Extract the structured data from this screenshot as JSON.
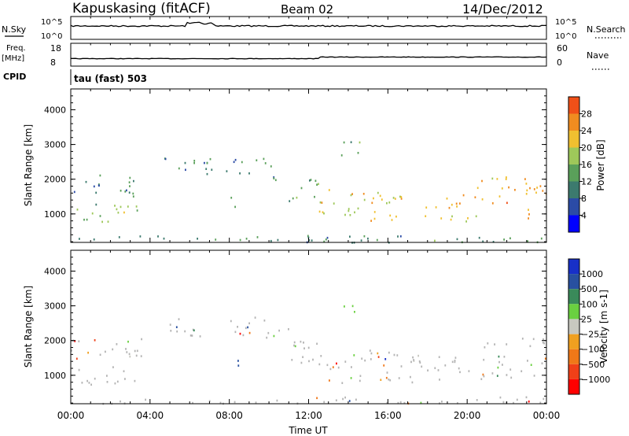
{
  "header": {
    "station": "Kapuskasing (fitACF)",
    "beam": "Beam 02",
    "date": "14/Dec/2012"
  },
  "top_panels": {
    "nsky_label": "N.Sky",
    "nsky_ticks": [
      "10^5",
      "10^0"
    ],
    "nsearch_label": "N.Search",
    "nsearch_ticks": [
      "10^5",
      "10^0"
    ],
    "freq_label_1": "Freq.",
    "freq_label_2": "[MHz]",
    "freq_ticks": [
      "18",
      "8"
    ],
    "nave_label": "Nave",
    "nave_ticks": [
      "60",
      "0"
    ],
    "cpid_label": "CPID",
    "cpid_text": "tau (fast) 503"
  },
  "colors": {
    "power": [
      "#0000ff",
      "#2b4ba6",
      "#3c7a6e",
      "#5aa05a",
      "#9ec85a",
      "#f0c030",
      "#f08c20",
      "#f05018",
      "#ff0000"
    ],
    "velocity": [
      "#1830c8",
      "#2850a0",
      "#3a8a5a",
      "#6ad040",
      "#c8c8c0",
      "#f0a020",
      "#f07818",
      "#f04018",
      "#ff0000"
    ],
    "ground_scatter": "#b4b4b4"
  },
  "chart_data": [
    {
      "type": "heatmap",
      "name": "power",
      "ylabel": "Slant Range [km]",
      "yticks": [
        "1000",
        "2000",
        "3000",
        "4000"
      ],
      "ylim": [
        180,
        4600
      ],
      "colorbar_label": "Power [dB]",
      "colorbar_ticks": [
        "4",
        "8",
        "12",
        "16",
        "20",
        "24",
        "28"
      ],
      "clim": [
        0,
        32
      ],
      "regions": [
        {
          "t0": 0.0,
          "t1": 3.6,
          "r0": 1500,
          "r1": 2200,
          "level": 8
        },
        {
          "t0": 0.2,
          "t1": 3.8,
          "r0": 750,
          "r1": 1300,
          "level": 14
        },
        {
          "t0": 4.6,
          "t1": 9.8,
          "r0": 2150,
          "r1": 2700,
          "level": 9
        },
        {
          "t0": 7.6,
          "t1": 8.6,
          "r0": 1200,
          "r1": 1500,
          "level": 14
        },
        {
          "t0": 9.6,
          "t1": 11.0,
          "r0": 2000,
          "r1": 2400,
          "level": 10
        },
        {
          "t0": 11.0,
          "t1": 12.5,
          "r0": 1300,
          "r1": 2100,
          "level": 12
        },
        {
          "t0": 12.5,
          "t1": 16.5,
          "r0": 800,
          "r1": 1800,
          "level": 19
        },
        {
          "t0": 16.5,
          "t1": 20.5,
          "r0": 800,
          "r1": 1600,
          "level": 20
        },
        {
          "t0": 20.5,
          "t1": 24.0,
          "r0": 900,
          "r1": 2100,
          "level": 22
        },
        {
          "t0": 13.6,
          "t1": 14.6,
          "r0": 2600,
          "r1": 3100,
          "level": 12
        },
        {
          "t0": 0.0,
          "t1": 24.0,
          "r0": 200,
          "r1": 400,
          "level": 10
        }
      ]
    },
    {
      "type": "heatmap",
      "name": "velocity",
      "ylabel": "Slant Range [km]",
      "yticks": [
        "1000",
        "2000",
        "3000",
        "4000"
      ],
      "ylim": [
        180,
        4600
      ],
      "colorbar_label": "Velocity [m s-1]",
      "colorbar_ticks": [
        "1000",
        "500",
        "100",
        "25",
        "−25",
        "−100",
        "−500",
        "−1000"
      ],
      "regions": [
        {
          "t0": 0.0,
          "t1": 3.6,
          "r0": 1500,
          "r1": 2200,
          "vel": 0
        },
        {
          "t0": 0.2,
          "t1": 3.8,
          "r0": 750,
          "r1": 1300,
          "vel": 0
        },
        {
          "t0": 4.6,
          "t1": 9.8,
          "r0": 2150,
          "r1": 2700,
          "vel": 0
        },
        {
          "t0": 7.6,
          "t1": 8.6,
          "r0": 1200,
          "r1": 1500,
          "vel": 200
        },
        {
          "t0": 9.6,
          "t1": 11.0,
          "r0": 2000,
          "r1": 2400,
          "vel": 0
        },
        {
          "t0": 11.0,
          "t1": 12.5,
          "r0": 1300,
          "r1": 2100,
          "vel": 0
        },
        {
          "t0": 12.5,
          "t1": 16.5,
          "r0": 800,
          "r1": 1800,
          "vel": 0
        },
        {
          "t0": 16.5,
          "t1": 20.5,
          "r0": 800,
          "r1": 1600,
          "vel": 0
        },
        {
          "t0": 20.5,
          "t1": 24.0,
          "r0": 900,
          "r1": 2100,
          "vel": 0
        },
        {
          "t0": 13.6,
          "t1": 14.6,
          "r0": 2600,
          "r1": 3100,
          "vel": 300
        },
        {
          "t0": 0.0,
          "t1": 24.0,
          "r0": 200,
          "r1": 400,
          "vel": 0
        }
      ]
    }
  ],
  "xaxis": {
    "label": "Time UT",
    "ticks": [
      "00:00",
      "04:00",
      "08:00",
      "12:00",
      "16:00",
      "20:00",
      "00:00"
    ]
  }
}
